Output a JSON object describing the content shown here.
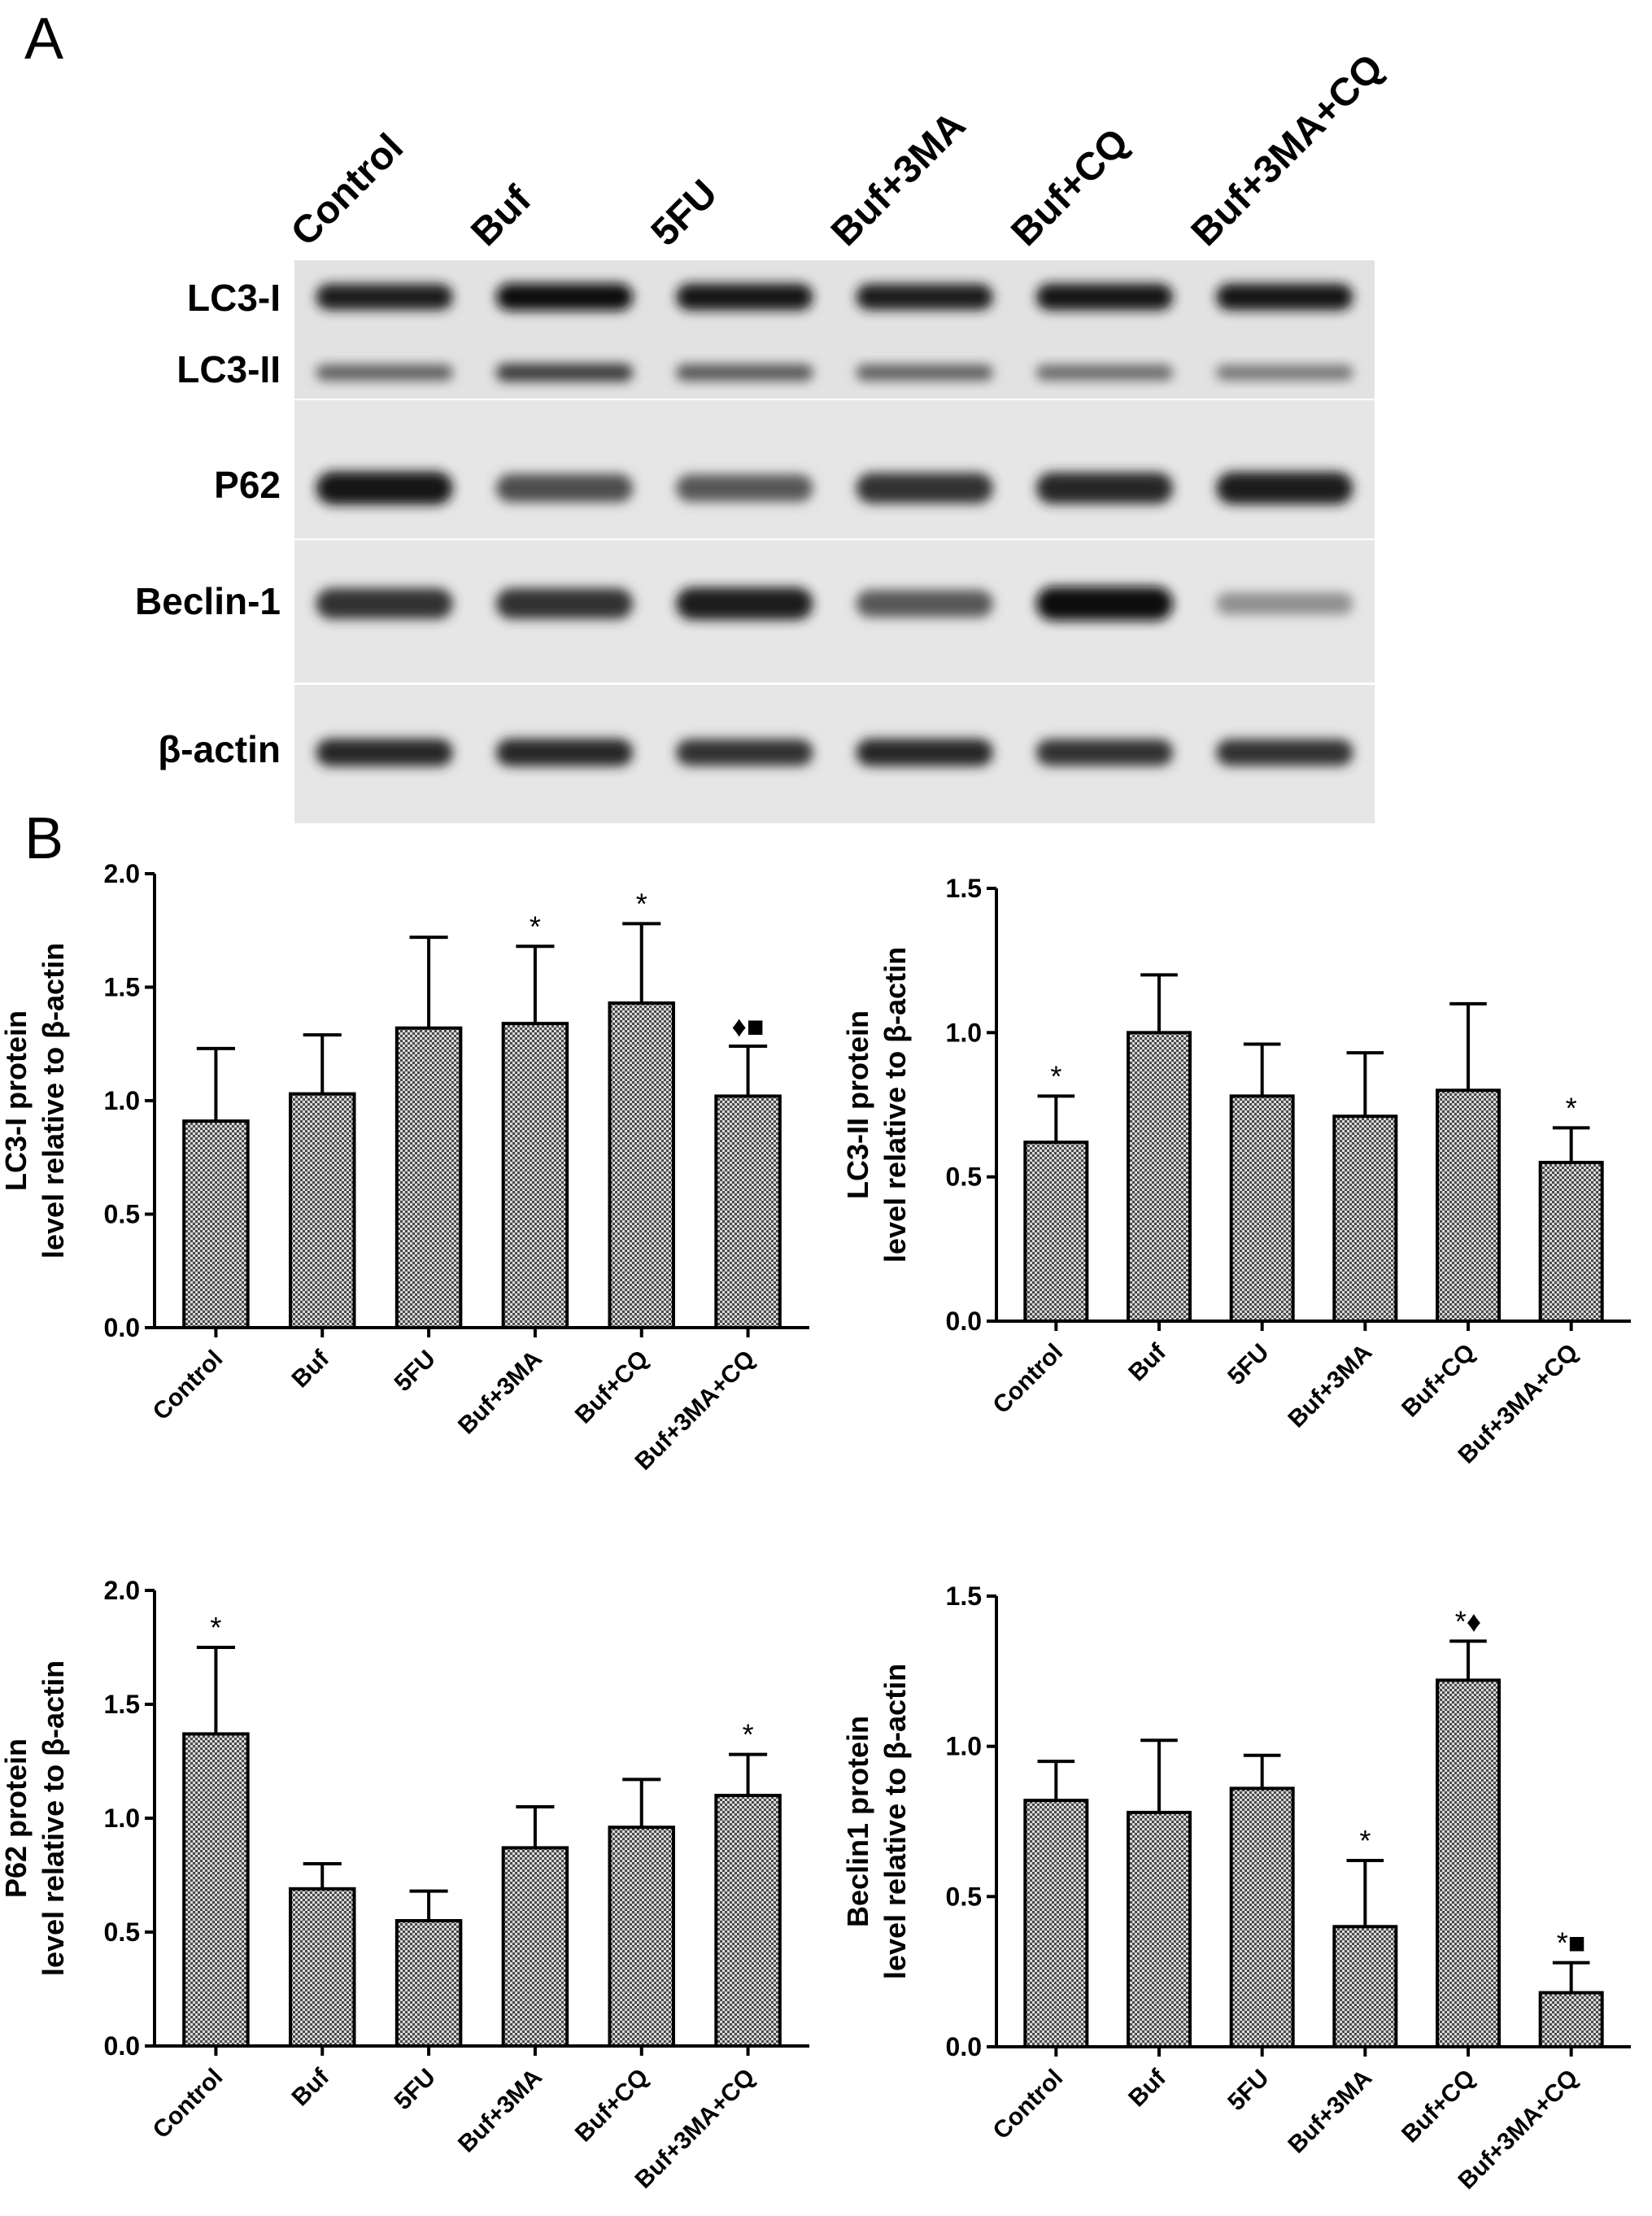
{
  "panels": {
    "a": "A",
    "b": "B"
  },
  "blot": {
    "lanes": [
      "Control",
      "Buf",
      "5FU",
      "Buf+3MA",
      "Buf+CQ",
      "Buf+3MA+CQ"
    ],
    "bands": [
      {
        "label": "LC3-I",
        "intensity": [
          0.9,
          1.0,
          0.95,
          0.9,
          0.95,
          0.95
        ]
      },
      {
        "label": "LC3-II",
        "intensity": [
          0.55,
          0.75,
          0.6,
          0.55,
          0.5,
          0.45
        ]
      },
      {
        "label": "P62",
        "intensity": [
          0.95,
          0.65,
          0.6,
          0.8,
          0.85,
          0.9
        ]
      },
      {
        "label": "Beclin-1",
        "intensity": [
          0.8,
          0.8,
          0.9,
          0.6,
          1.0,
          0.3
        ]
      },
      {
        "label": "β-actin",
        "intensity": [
          0.85,
          0.85,
          0.8,
          0.85,
          0.8,
          0.8
        ]
      }
    ]
  },
  "chart_data": [
    {
      "type": "bar",
      "ylabel_line1": "LC3-I protein",
      "ylabel_line2": "level relative to β-actin",
      "categories": [
        "Control",
        "Buf",
        "5FU",
        "Buf+3MA",
        "Buf+CQ",
        "Buf+3MA+CQ"
      ],
      "values": [
        0.91,
        1.03,
        1.32,
        1.34,
        1.43,
        1.02
      ],
      "errors": [
        0.32,
        0.26,
        0.4,
        0.34,
        0.35,
        0.22
      ],
      "annotations": [
        "",
        "",
        "",
        "*",
        "*",
        "♦■"
      ],
      "ylim": [
        0,
        2.0
      ],
      "yticks": [
        "0.0",
        "0.5",
        "1.0",
        "1.5",
        "2.0"
      ]
    },
    {
      "type": "bar",
      "ylabel_line1": "LC3-II protein",
      "ylabel_line2": "level relative to β-actin",
      "categories": [
        "Control",
        "Buf",
        "5FU",
        "Buf+3MA",
        "Buf+CQ",
        "Buf+3MA+CQ"
      ],
      "values": [
        0.62,
        1.0,
        0.78,
        0.71,
        0.8,
        0.55
      ],
      "errors": [
        0.16,
        0.2,
        0.18,
        0.22,
        0.3,
        0.12
      ],
      "annotations": [
        "*",
        "",
        "",
        "",
        "",
        "*"
      ],
      "ylim": [
        0,
        1.5
      ],
      "yticks": [
        "0.0",
        "0.5",
        "1.0",
        "1.5"
      ]
    },
    {
      "type": "bar",
      "ylabel_line1": "P62 protein",
      "ylabel_line2": "level relative to β-actin",
      "categories": [
        "Control",
        "Buf",
        "5FU",
        "Buf+3MA",
        "Buf+CQ",
        "Buf+3MA+CQ"
      ],
      "values": [
        1.37,
        0.69,
        0.55,
        0.87,
        0.96,
        1.1
      ],
      "errors": [
        0.38,
        0.11,
        0.13,
        0.18,
        0.21,
        0.18
      ],
      "annotations": [
        "*",
        "",
        "",
        "",
        "",
        "*"
      ],
      "ylim": [
        0,
        2.0
      ],
      "yticks": [
        "0.0",
        "0.5",
        "1.0",
        "1.5",
        "2.0"
      ]
    },
    {
      "type": "bar",
      "ylabel_line1": "Beclin1 protein",
      "ylabel_line2": "level relative to β-actin",
      "categories": [
        "Control",
        "Buf",
        "5FU",
        "Buf+3MA",
        "Buf+CQ",
        "Buf+3MA+CQ"
      ],
      "values": [
        0.82,
        0.78,
        0.86,
        0.4,
        1.22,
        0.18
      ],
      "errors": [
        0.13,
        0.24,
        0.11,
        0.22,
        0.13,
        0.1
      ],
      "annotations": [
        "",
        "",
        "",
        "*",
        "*♦",
        "*■"
      ],
      "ylim": [
        0,
        1.5
      ],
      "yticks": [
        "0.0",
        "0.5",
        "1.0",
        "1.5"
      ]
    }
  ]
}
